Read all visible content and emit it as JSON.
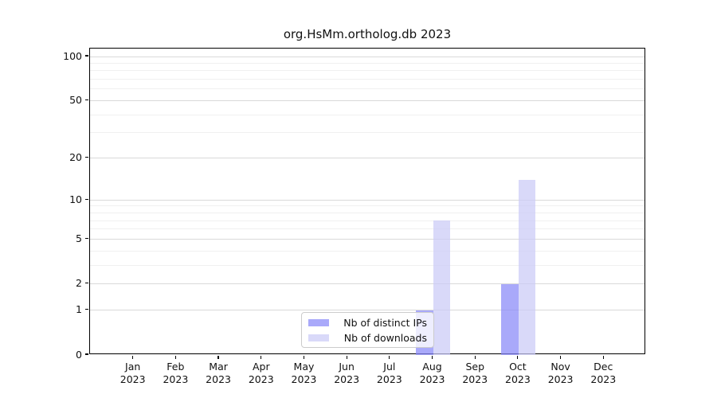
{
  "chart_data": {
    "type": "bar",
    "title": "org.HsMm.ortholog.db 2023",
    "categories": [
      "Jan 2023",
      "Feb 2023",
      "Mar 2023",
      "Apr 2023",
      "May 2023",
      "Jun 2023",
      "Jul 2023",
      "Aug 2023",
      "Sep 2023",
      "Oct 2023",
      "Nov 2023",
      "Dec 2023"
    ],
    "series": [
      {
        "name": "Nb of distinct IPs",
        "color": "rgba(136,136,248,0.72)",
        "values": [
          0,
          0,
          0,
          0,
          0,
          0,
          0,
          1,
          0,
          2,
          0,
          0
        ]
      },
      {
        "name": "Nb of downloads",
        "color": "rgba(202,202,246,0.72)",
        "values": [
          0,
          0,
          0,
          0,
          0,
          0,
          0,
          7,
          0,
          14,
          0,
          0
        ]
      }
    ],
    "xlabel": "",
    "ylabel": "",
    "y_scale": "log10(value+1)",
    "ylim": [
      0,
      100
    ],
    "y_major_ticks": [
      100,
      50,
      20,
      10,
      5,
      2,
      1,
      0
    ],
    "y_minor_gridlines": [
      3,
      4,
      6,
      7,
      8,
      9,
      30,
      40,
      60,
      70,
      80,
      90
    ],
    "grid": true,
    "legend_position": "lower center"
  },
  "colors": {
    "major_grid": "#d9d9d9",
    "minor_grid": "#f0f0f0",
    "axis": "#000000",
    "background": "#ffffff"
  }
}
